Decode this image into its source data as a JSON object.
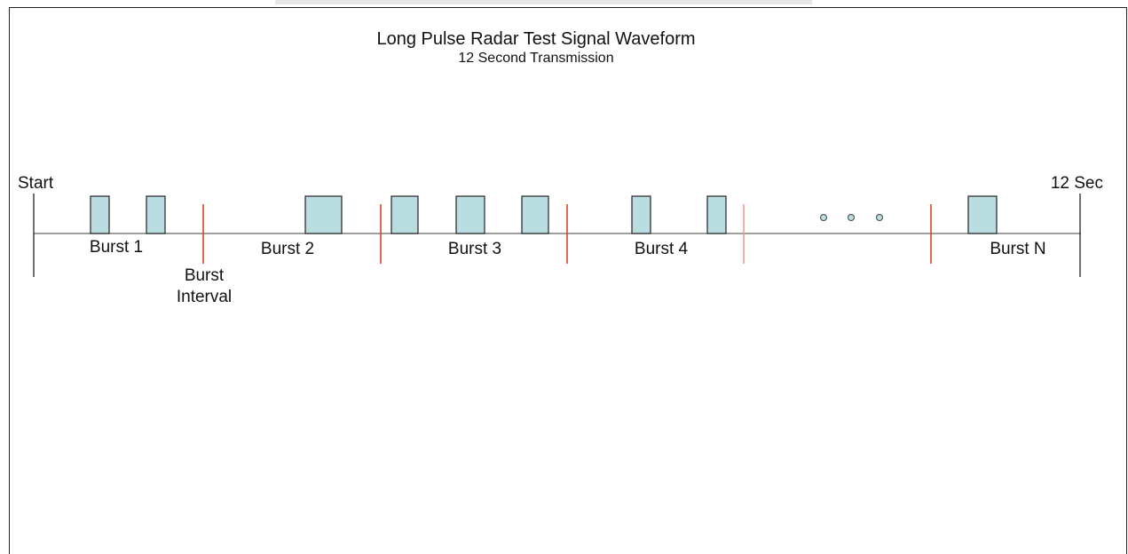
{
  "title": "Long Pulse Radar Test Signal Waveform",
  "subtitle": "12 Second Transmission",
  "start_label": "Start",
  "end_label": "12 Sec",
  "bursts": [
    "Burst 1",
    "Burst 2",
    "Burst 3",
    "Burst 4",
    "Burst N"
  ],
  "interval_label": [
    "Burst",
    "Interval"
  ]
}
